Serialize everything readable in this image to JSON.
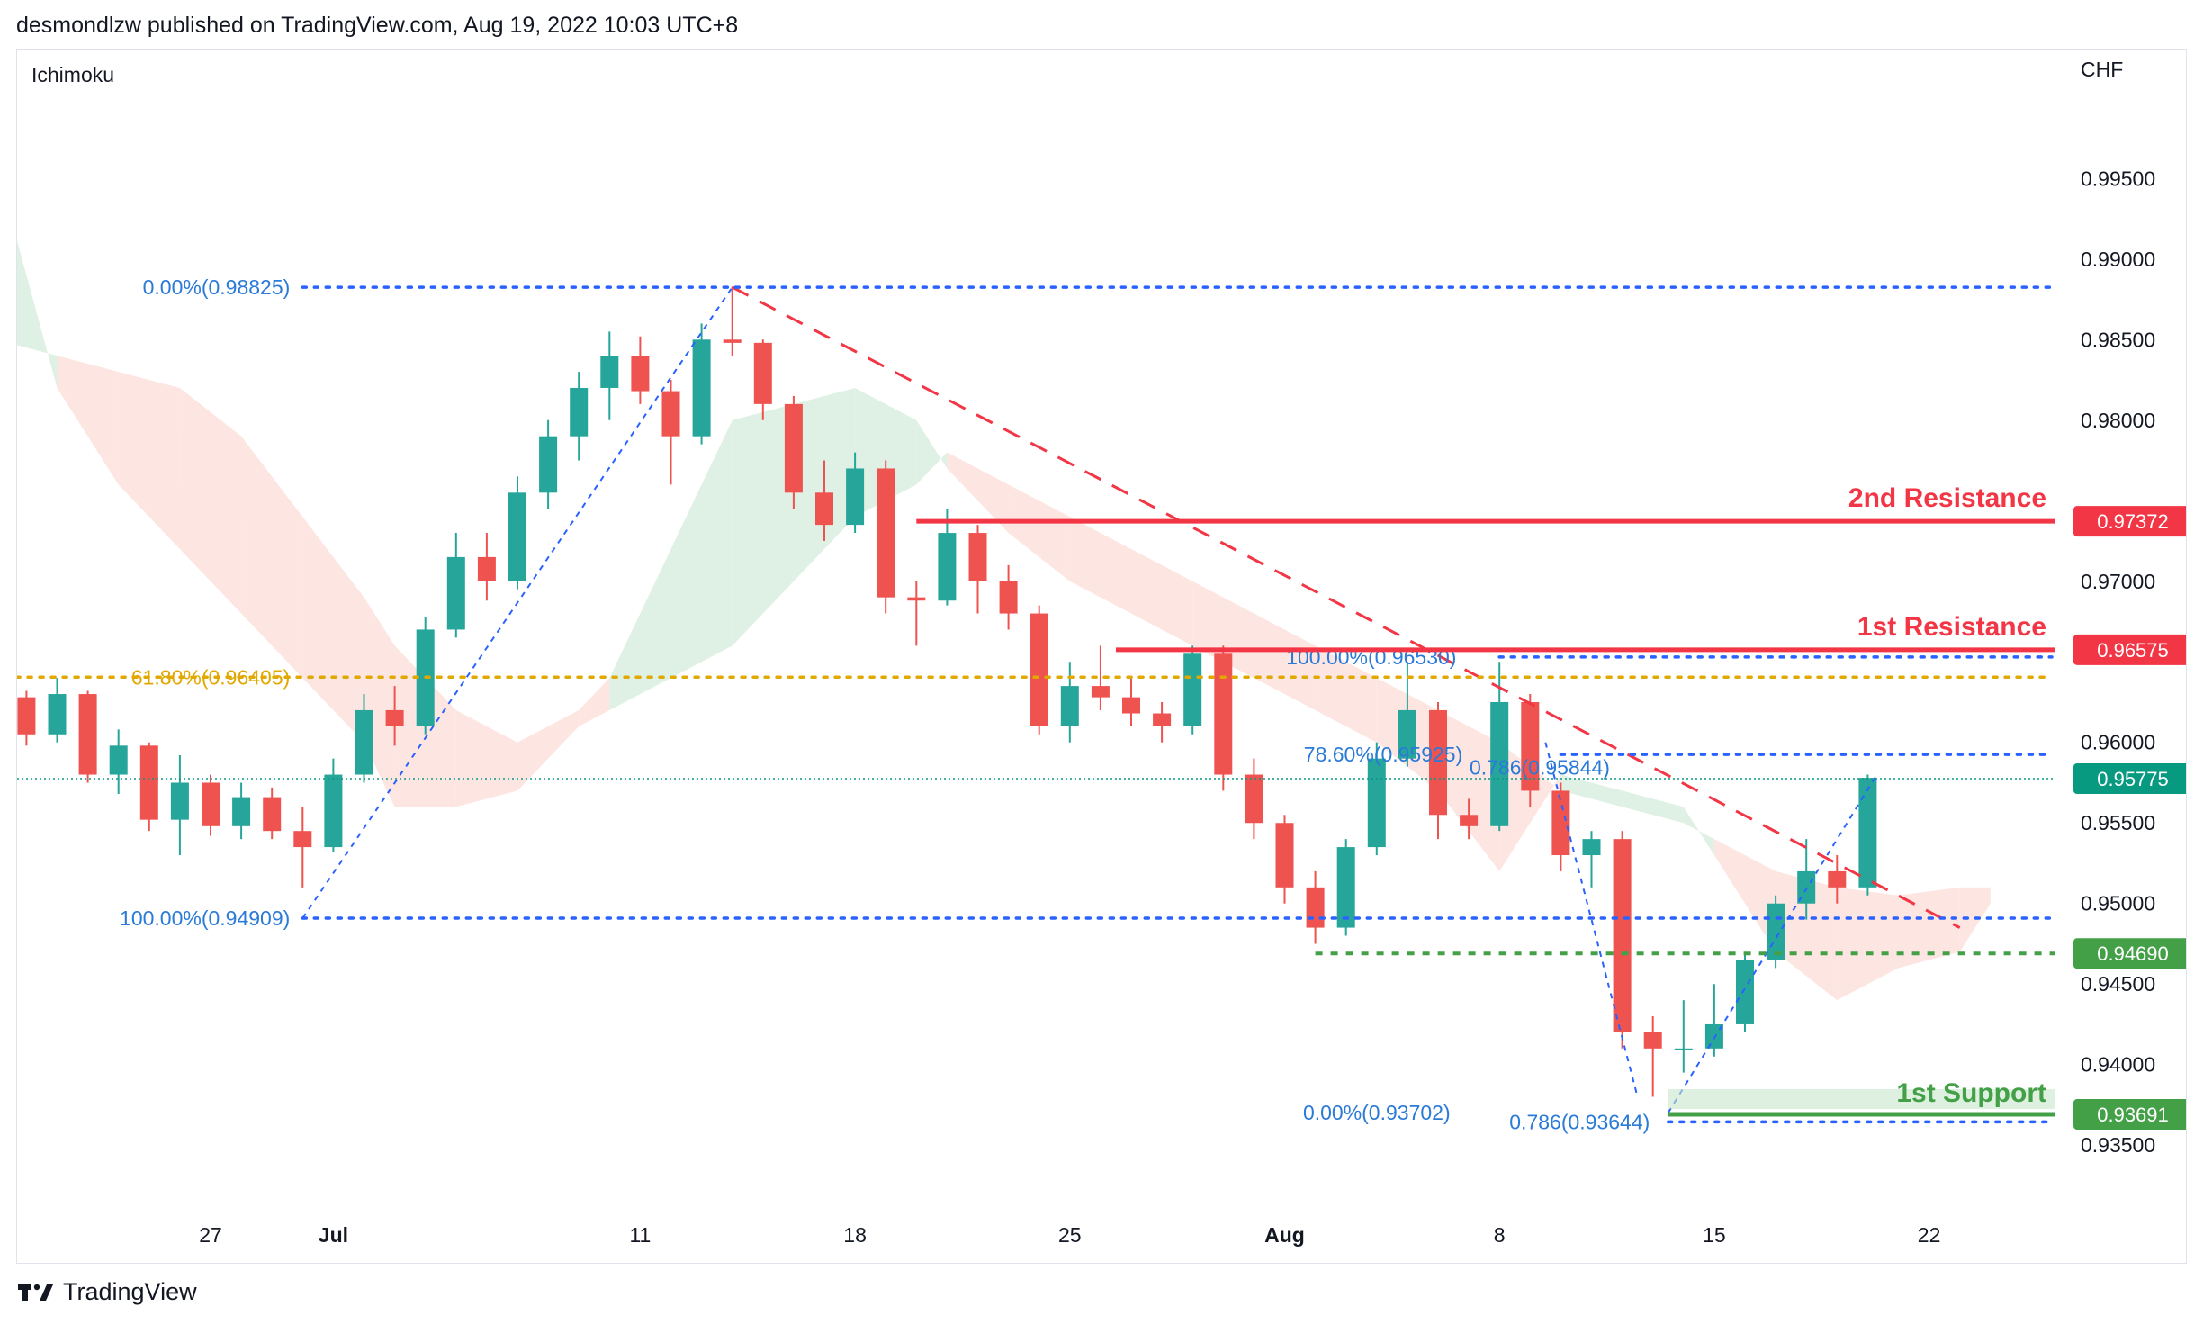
{
  "header": {
    "text": "desmondlzw published on TradingView.com, Aug 19, 2022 10:03 UTC+8"
  },
  "footer": {
    "brand": "TradingView"
  },
  "chart_data": {
    "type": "candlestick",
    "indicator": "Ichimoku",
    "currency": "CHF",
    "ylim": [
      0.933,
      1.002
    ],
    "y_ticks": [
      {
        "value": 0.995,
        "label": "0.99500"
      },
      {
        "value": 0.99,
        "label": "0.99000"
      },
      {
        "value": 0.985,
        "label": "0.98500"
      },
      {
        "value": 0.98,
        "label": "0.98000"
      },
      {
        "value": 0.97,
        "label": "0.97000"
      },
      {
        "value": 0.96,
        "label": "0.96000"
      },
      {
        "value": 0.955,
        "label": "0.95500"
      },
      {
        "value": 0.95,
        "label": "0.95000"
      },
      {
        "value": 0.945,
        "label": "0.94500"
      },
      {
        "value": 0.94,
        "label": "0.94000"
      },
      {
        "value": 0.935,
        "label": "0.93500"
      }
    ],
    "x_ticks": [
      {
        "day": 27,
        "label": "27",
        "bold": false
      },
      {
        "day": 31,
        "label": "Jul",
        "bold": true
      },
      {
        "day": 41,
        "label": "11",
        "bold": false
      },
      {
        "day": 48,
        "label": "18",
        "bold": false
      },
      {
        "day": 55,
        "label": "25",
        "bold": false
      },
      {
        "day": 62,
        "label": "Aug",
        "bold": true
      },
      {
        "day": 69,
        "label": "8",
        "bold": false
      },
      {
        "day": 76,
        "label": "15",
        "bold": false
      },
      {
        "day": 83,
        "label": "22",
        "bold": false
      }
    ],
    "colors": {
      "up": "#26a69a",
      "down": "#ef5350",
      "resistance": "#f23645",
      "support": "#43a047",
      "fib": "#2962ff",
      "fib_text": "#2a7ad8",
      "golden": "#e0a800",
      "trend": "#f23645",
      "price": "#089981",
      "cloud_bull": "#d9eedf",
      "cloud_bear": "#fde0dc"
    },
    "levels": [
      {
        "name": "2nd Resistance",
        "value": 0.97372,
        "label": "0.97372",
        "kind": "resistance"
      },
      {
        "name": "1st Resistance",
        "value": 0.96575,
        "label": "0.96575",
        "kind": "resistance"
      },
      {
        "name": "",
        "value": 0.95775,
        "label": "0.95775",
        "kind": "price"
      },
      {
        "name": "",
        "value": 0.9469,
        "label": "0.94690",
        "kind": "support-dotted"
      },
      {
        "name": "1st Support",
        "value": 0.93691,
        "label": "0.93691",
        "kind": "support"
      }
    ],
    "fib_labels": [
      {
        "text": "0.00%(0.98825)",
        "value": 0.98825
      },
      {
        "text": "61.80%(0.96405)",
        "value": 0.96405
      },
      {
        "text": "100.00%(0.94909)",
        "value": 0.94909
      },
      {
        "text": "100.00%(0.96530)",
        "value": 0.9653
      },
      {
        "text": "78.60%(0.95925)",
        "value": 0.95925
      },
      {
        "text": "0.786(0.95844)",
        "value": 0.95844
      },
      {
        "text": "0.00%(0.93702)",
        "value": 0.93702
      },
      {
        "text": "0.786(0.93644)",
        "value": 0.93644
      }
    ],
    "candles": [
      [
        18,
        0.965,
        0.9658,
        0.964,
        0.9645
      ],
      [
        19,
        0.9645,
        0.9668,
        0.964,
        0.966
      ],
      [
        20,
        0.966,
        0.9665,
        0.962,
        0.9628
      ],
      [
        21,
        0.9628,
        0.9632,
        0.9598,
        0.9605
      ],
      [
        22,
        0.9605,
        0.964,
        0.96,
        0.963
      ],
      [
        23,
        0.963,
        0.9632,
        0.9575,
        0.958
      ],
      [
        24,
        0.958,
        0.9608,
        0.9568,
        0.9598
      ],
      [
        25,
        0.9598,
        0.96,
        0.9545,
        0.9552
      ],
      [
        26,
        0.9552,
        0.9592,
        0.953,
        0.9575
      ],
      [
        27,
        0.9575,
        0.958,
        0.9542,
        0.9548
      ],
      [
        28,
        0.9548,
        0.9575,
        0.954,
        0.9566
      ],
      [
        29,
        0.9566,
        0.9572,
        0.954,
        0.9545
      ],
      [
        30,
        0.9545,
        0.956,
        0.951,
        0.9535
      ],
      [
        31,
        0.9535,
        0.959,
        0.9532,
        0.958
      ],
      [
        32,
        0.958,
        0.963,
        0.9575,
        0.962
      ],
      [
        33,
        0.962,
        0.9635,
        0.9598,
        0.961
      ],
      [
        34,
        0.961,
        0.9678,
        0.9605,
        0.967
      ],
      [
        35,
        0.967,
        0.973,
        0.9665,
        0.9715
      ],
      [
        36,
        0.9715,
        0.973,
        0.9688,
        0.97
      ],
      [
        37,
        0.97,
        0.9765,
        0.9695,
        0.9755
      ],
      [
        38,
        0.9755,
        0.98,
        0.9745,
        0.979
      ],
      [
        39,
        0.979,
        0.983,
        0.9775,
        0.982
      ],
      [
        40,
        0.982,
        0.9855,
        0.98,
        0.984
      ],
      [
        41,
        0.984,
        0.9852,
        0.981,
        0.9818
      ],
      [
        42,
        0.9818,
        0.9825,
        0.976,
        0.979
      ],
      [
        43,
        0.979,
        0.986,
        0.9785,
        0.985
      ],
      [
        44,
        0.985,
        0.9883,
        0.984,
        0.9848
      ],
      [
        45,
        0.9848,
        0.985,
        0.98,
        0.981
      ],
      [
        46,
        0.981,
        0.9815,
        0.9745,
        0.9755
      ],
      [
        47,
        0.9755,
        0.9775,
        0.9725,
        0.9735
      ],
      [
        48,
        0.9735,
        0.978,
        0.973,
        0.977
      ],
      [
        49,
        0.977,
        0.9775,
        0.968,
        0.969
      ],
      [
        50,
        0.969,
        0.97,
        0.966,
        0.9688
      ],
      [
        51,
        0.9688,
        0.9745,
        0.9685,
        0.973
      ],
      [
        52,
        0.973,
        0.9735,
        0.968,
        0.97
      ],
      [
        53,
        0.97,
        0.971,
        0.967,
        0.968
      ],
      [
        54,
        0.968,
        0.9685,
        0.9605,
        0.961
      ],
      [
        55,
        0.961,
        0.965,
        0.96,
        0.9635
      ],
      [
        56,
        0.9635,
        0.966,
        0.962,
        0.9628
      ],
      [
        57,
        0.9628,
        0.964,
        0.961,
        0.9618
      ],
      [
        58,
        0.9618,
        0.9625,
        0.96,
        0.961
      ],
      [
        59,
        0.961,
        0.966,
        0.9605,
        0.9655
      ],
      [
        60,
        0.9655,
        0.966,
        0.957,
        0.958
      ],
      [
        61,
        0.958,
        0.959,
        0.954,
        0.955
      ],
      [
        62,
        0.955,
        0.9555,
        0.95,
        0.951
      ],
      [
        63,
        0.951,
        0.952,
        0.9475,
        0.9485
      ],
      [
        64,
        0.9485,
        0.954,
        0.948,
        0.9535
      ],
      [
        65,
        0.9535,
        0.96,
        0.953,
        0.959
      ],
      [
        66,
        0.959,
        0.965,
        0.9585,
        0.962
      ],
      [
        67,
        0.962,
        0.9625,
        0.954,
        0.9555
      ],
      [
        68,
        0.9555,
        0.9565,
        0.954,
        0.9548
      ],
      [
        69,
        0.9548,
        0.965,
        0.9545,
        0.9625
      ],
      [
        70,
        0.9625,
        0.963,
        0.956,
        0.957
      ],
      [
        71,
        0.957,
        0.9575,
        0.952,
        0.953
      ],
      [
        72,
        0.953,
        0.9545,
        0.951,
        0.954
      ],
      [
        73,
        0.954,
        0.9545,
        0.941,
        0.942
      ],
      [
        74,
        0.942,
        0.943,
        0.938,
        0.941
      ],
      [
        75,
        0.941,
        0.944,
        0.9395,
        0.941
      ],
      [
        76,
        0.941,
        0.945,
        0.9405,
        0.9425
      ],
      [
        77,
        0.9425,
        0.947,
        0.942,
        0.9465
      ],
      [
        78,
        0.9465,
        0.9505,
        0.946,
        0.95
      ],
      [
        79,
        0.95,
        0.954,
        0.949,
        0.952
      ],
      [
        80,
        0.952,
        0.953,
        0.95,
        0.951
      ],
      [
        81,
        0.951,
        0.958,
        0.9505,
        0.9578
      ]
    ],
    "ichimoku_cloud": [
      {
        "day": 18,
        "a": 0.985,
        "b": 0.998,
        "bullish": true
      },
      {
        "day": 20,
        "a": 0.985,
        "b": 0.996,
        "bullish": true
      },
      {
        "day": 22,
        "a": 0.984,
        "b": 0.982,
        "bullish": false
      },
      {
        "day": 24,
        "a": 0.983,
        "b": 0.976,
        "bullish": false
      },
      {
        "day": 26,
        "a": 0.982,
        "b": 0.972,
        "bullish": false
      },
      {
        "day": 28,
        "a": 0.979,
        "b": 0.968,
        "bullish": false
      },
      {
        "day": 30,
        "a": 0.974,
        "b": 0.964,
        "bullish": false
      },
      {
        "day": 32,
        "a": 0.969,
        "b": 0.96,
        "bullish": false
      },
      {
        "day": 33,
        "a": 0.966,
        "b": 0.956,
        "bullish": false
      },
      {
        "day": 35,
        "a": 0.962,
        "b": 0.956,
        "bullish": false
      },
      {
        "day": 37,
        "a": 0.96,
        "b": 0.957,
        "bullish": false
      },
      {
        "day": 39,
        "a": 0.962,
        "b": 0.961,
        "bullish": false
      },
      {
        "day": 40,
        "a": 0.964,
        "b": 0.962,
        "bullish": true
      },
      {
        "day": 42,
        "a": 0.972,
        "b": 0.964,
        "bullish": true
      },
      {
        "day": 44,
        "a": 0.98,
        "b": 0.966,
        "bullish": true
      },
      {
        "day": 46,
        "a": 0.981,
        "b": 0.97,
        "bullish": true
      },
      {
        "day": 48,
        "a": 0.982,
        "b": 0.974,
        "bullish": true
      },
      {
        "day": 50,
        "a": 0.98,
        "b": 0.976,
        "bullish": true
      },
      {
        "day": 51,
        "a": 0.977,
        "b": 0.978,
        "bullish": false
      },
      {
        "day": 53,
        "a": 0.973,
        "b": 0.976,
        "bullish": false
      },
      {
        "day": 55,
        "a": 0.97,
        "b": 0.974,
        "bullish": false
      },
      {
        "day": 57,
        "a": 0.968,
        "b": 0.972,
        "bullish": false
      },
      {
        "day": 59,
        "a": 0.966,
        "b": 0.97,
        "bullish": false
      },
      {
        "day": 61,
        "a": 0.964,
        "b": 0.968,
        "bullish": false
      },
      {
        "day": 63,
        "a": 0.962,
        "b": 0.966,
        "bullish": false
      },
      {
        "day": 65,
        "a": 0.96,
        "b": 0.964,
        "bullish": false
      },
      {
        "day": 67,
        "a": 0.957,
        "b": 0.962,
        "bullish": false
      },
      {
        "day": 69,
        "a": 0.952,
        "b": 0.96,
        "bullish": false
      },
      {
        "day": 71,
        "a": 0.958,
        "b": 0.957,
        "bullish": true
      },
      {
        "day": 73,
        "a": 0.957,
        "b": 0.956,
        "bullish": true
      },
      {
        "day": 75,
        "a": 0.956,
        "b": 0.955,
        "bullish": true
      },
      {
        "day": 76,
        "a": 0.953,
        "b": 0.954,
        "bullish": false
      },
      {
        "day": 78,
        "a": 0.947,
        "b": 0.952,
        "bullish": false
      },
      {
        "day": 80,
        "a": 0.944,
        "b": 0.951,
        "bullish": false
      },
      {
        "day": 82,
        "a": 0.946,
        "b": 0.9505,
        "bullish": false
      },
      {
        "day": 84,
        "a": 0.947,
        "b": 0.951,
        "bullish": false
      },
      {
        "day": 85,
        "a": 0.95,
        "b": 0.951,
        "bullish": true
      }
    ]
  }
}
